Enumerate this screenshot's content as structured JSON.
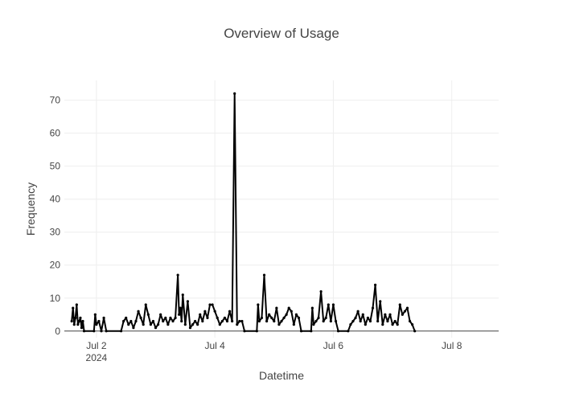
{
  "chart_data": {
    "type": "line",
    "title": "Overview of Usage",
    "xlabel": "Datetime",
    "ylabel": "Frequency",
    "x_range": [
      "2024-07-01T11:00",
      "2024-07-08T19:00"
    ],
    "ylim": [
      -2,
      76
    ],
    "grid": true,
    "legend": "none",
    "line_color": "#000000",
    "y_ticks": [
      0,
      10,
      20,
      30,
      40,
      50,
      60,
      70
    ],
    "x_ticks": [
      {
        "at": "2024-07-02T00:00",
        "label": "Jul 2",
        "sublabel": "2024"
      },
      {
        "at": "2024-07-04T00:00",
        "label": "Jul 4",
        "sublabel": ""
      },
      {
        "at": "2024-07-06T00:00",
        "label": "Jul 6",
        "sublabel": ""
      },
      {
        "at": "2024-07-08T00:00",
        "label": "Jul 8",
        "sublabel": ""
      }
    ],
    "series": [
      {
        "points": [
          [
            "2024-07-01T14:00",
            3
          ],
          [
            "2024-07-01T14:30",
            7
          ],
          [
            "2024-07-01T15:00",
            2
          ],
          [
            "2024-07-01T15:30",
            4
          ],
          [
            "2024-07-01T16:00",
            8
          ],
          [
            "2024-07-01T16:30",
            2
          ],
          [
            "2024-07-01T17:00",
            3
          ],
          [
            "2024-07-01T17:30",
            4
          ],
          [
            "2024-07-01T18:00",
            1
          ],
          [
            "2024-07-01T18:30",
            3
          ],
          [
            "2024-07-01T19:00",
            0
          ],
          [
            "2024-07-01T23:00",
            0
          ],
          [
            "2024-07-01T23:30",
            5
          ],
          [
            "2024-07-02T00:00",
            2
          ],
          [
            "2024-07-02T01:00",
            3
          ],
          [
            "2024-07-02T02:00",
            0
          ],
          [
            "2024-07-02T03:00",
            4
          ],
          [
            "2024-07-02T04:00",
            0
          ],
          [
            "2024-07-02T10:00",
            0
          ],
          [
            "2024-07-02T11:00",
            3
          ],
          [
            "2024-07-02T12:00",
            4
          ],
          [
            "2024-07-02T13:00",
            2
          ],
          [
            "2024-07-02T14:00",
            3
          ],
          [
            "2024-07-02T15:00",
            1
          ],
          [
            "2024-07-02T16:00",
            3
          ],
          [
            "2024-07-02T17:00",
            6
          ],
          [
            "2024-07-02T18:00",
            4
          ],
          [
            "2024-07-02T19:00",
            2
          ],
          [
            "2024-07-02T20:00",
            8
          ],
          [
            "2024-07-02T21:00",
            5
          ],
          [
            "2024-07-02T22:00",
            2
          ],
          [
            "2024-07-02T23:00",
            3
          ],
          [
            "2024-07-03T00:00",
            1
          ],
          [
            "2024-07-03T01:00",
            2
          ],
          [
            "2024-07-03T02:00",
            5
          ],
          [
            "2024-07-03T03:00",
            3
          ],
          [
            "2024-07-03T04:00",
            4
          ],
          [
            "2024-07-03T05:00",
            2
          ],
          [
            "2024-07-03T06:00",
            4
          ],
          [
            "2024-07-03T07:00",
            3
          ],
          [
            "2024-07-03T08:00",
            4
          ],
          [
            "2024-07-03T09:00",
            17
          ],
          [
            "2024-07-03T09:30",
            5
          ],
          [
            "2024-07-03T10:00",
            7
          ],
          [
            "2024-07-03T10:30",
            3
          ],
          [
            "2024-07-03T11:00",
            11
          ],
          [
            "2024-07-03T12:00",
            2
          ],
          [
            "2024-07-03T13:00",
            9
          ],
          [
            "2024-07-03T14:00",
            1
          ],
          [
            "2024-07-03T15:00",
            2
          ],
          [
            "2024-07-03T16:00",
            3
          ],
          [
            "2024-07-03T17:00",
            2
          ],
          [
            "2024-07-03T18:00",
            5
          ],
          [
            "2024-07-03T19:00",
            3
          ],
          [
            "2024-07-03T20:00",
            6
          ],
          [
            "2024-07-03T21:00",
            4
          ],
          [
            "2024-07-03T22:00",
            8
          ],
          [
            "2024-07-03T23:00",
            8
          ],
          [
            "2024-07-04T00:00",
            6
          ],
          [
            "2024-07-04T01:00",
            4
          ],
          [
            "2024-07-04T02:00",
            2
          ],
          [
            "2024-07-04T03:00",
            3
          ],
          [
            "2024-07-04T04:00",
            4
          ],
          [
            "2024-07-04T05:00",
            3
          ],
          [
            "2024-07-04T06:00",
            6
          ],
          [
            "2024-07-04T07:00",
            3
          ],
          [
            "2024-07-04T08:00",
            72
          ],
          [
            "2024-07-04T09:00",
            2
          ],
          [
            "2024-07-04T10:00",
            3
          ],
          [
            "2024-07-04T11:00",
            3
          ],
          [
            "2024-07-04T12:00",
            0
          ],
          [
            "2024-07-04T17:00",
            0
          ],
          [
            "2024-07-04T17:30",
            8
          ],
          [
            "2024-07-04T18:00",
            3
          ],
          [
            "2024-07-04T19:00",
            4
          ],
          [
            "2024-07-04T20:00",
            17
          ],
          [
            "2024-07-04T21:00",
            3
          ],
          [
            "2024-07-04T22:00",
            5
          ],
          [
            "2024-07-04T23:00",
            4
          ],
          [
            "2024-07-05T00:00",
            3
          ],
          [
            "2024-07-05T01:00",
            7
          ],
          [
            "2024-07-05T02:00",
            2
          ],
          [
            "2024-07-05T03:00",
            3
          ],
          [
            "2024-07-05T04:00",
            4
          ],
          [
            "2024-07-05T05:00",
            5
          ],
          [
            "2024-07-05T06:00",
            7
          ],
          [
            "2024-07-05T07:00",
            6
          ],
          [
            "2024-07-05T08:00",
            2
          ],
          [
            "2024-07-05T09:00",
            5
          ],
          [
            "2024-07-05T10:00",
            4
          ],
          [
            "2024-07-05T11:00",
            0
          ],
          [
            "2024-07-05T15:00",
            0
          ],
          [
            "2024-07-05T15:30",
            7
          ],
          [
            "2024-07-05T16:00",
            2
          ],
          [
            "2024-07-05T17:00",
            3
          ],
          [
            "2024-07-05T18:00",
            4
          ],
          [
            "2024-07-05T19:00",
            12
          ],
          [
            "2024-07-05T20:00",
            3
          ],
          [
            "2024-07-05T21:00",
            4
          ],
          [
            "2024-07-05T22:00",
            8
          ],
          [
            "2024-07-05T23:00",
            3
          ],
          [
            "2024-07-06T00:00",
            8
          ],
          [
            "2024-07-06T01:00",
            3
          ],
          [
            "2024-07-06T02:00",
            0
          ],
          [
            "2024-07-06T06:00",
            0
          ],
          [
            "2024-07-06T07:00",
            2
          ],
          [
            "2024-07-06T08:00",
            3
          ],
          [
            "2024-07-06T09:00",
            4
          ],
          [
            "2024-07-06T10:00",
            6
          ],
          [
            "2024-07-06T11:00",
            3
          ],
          [
            "2024-07-06T12:00",
            5
          ],
          [
            "2024-07-06T13:00",
            2
          ],
          [
            "2024-07-06T14:00",
            4
          ],
          [
            "2024-07-06T15:00",
            3
          ],
          [
            "2024-07-06T16:00",
            7
          ],
          [
            "2024-07-06T17:00",
            14
          ],
          [
            "2024-07-06T18:00",
            3
          ],
          [
            "2024-07-06T19:00",
            9
          ],
          [
            "2024-07-06T20:00",
            2
          ],
          [
            "2024-07-06T21:00",
            5
          ],
          [
            "2024-07-06T22:00",
            3
          ],
          [
            "2024-07-06T23:00",
            5
          ],
          [
            "2024-07-07T00:00",
            2
          ],
          [
            "2024-07-07T01:00",
            3
          ],
          [
            "2024-07-07T02:00",
            2
          ],
          [
            "2024-07-07T03:00",
            8
          ],
          [
            "2024-07-07T04:00",
            5
          ],
          [
            "2024-07-07T05:00",
            6
          ],
          [
            "2024-07-07T06:00",
            7
          ],
          [
            "2024-07-07T07:00",
            3
          ],
          [
            "2024-07-07T08:00",
            2
          ],
          [
            "2024-07-07T09:00",
            0
          ]
        ]
      }
    ]
  }
}
